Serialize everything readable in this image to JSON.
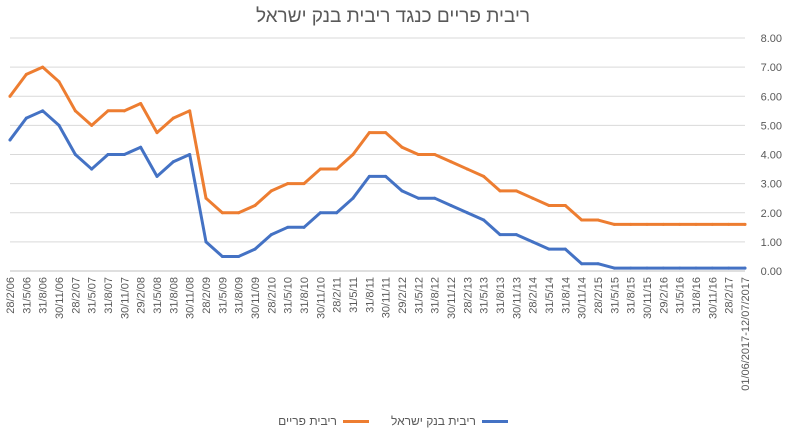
{
  "chart_data": {
    "type": "line",
    "title": "ריבית פריים כנגד ריבית בנק ישראל",
    "xlabel": "",
    "ylabel": "",
    "ylim": [
      0,
      8
    ],
    "yticks": [
      "0.00",
      "1.00",
      "2.00",
      "3.00",
      "4.00",
      "5.00",
      "6.00",
      "7.00",
      "8.00"
    ],
    "y_axis_side": "right",
    "grid": true,
    "legend_position": "bottom",
    "x_labels": [
      "28/2/06",
      "31/5/06",
      "31/8/06",
      "30/11/06",
      "28/2/07",
      "31/5/07",
      "31/8/07",
      "30/11/07",
      "29/2/08",
      "31/5/08",
      "31/8/08",
      "30/11/08",
      "28/2/09",
      "31/5/09",
      "31/8/09",
      "30/11/09",
      "28/2/10",
      "31/5/10",
      "31/8/10",
      "30/11/10",
      "28/2/11",
      "31/5/11",
      "31/8/11",
      "30/11/11",
      "29/2/12",
      "31/5/12",
      "31/8/12",
      "30/11/12",
      "28/2/13",
      "31/5/13",
      "31/8/13",
      "30/11/13",
      "28/2/14",
      "31/5/14",
      "31/8/14",
      "30/11/14",
      "28/2/15",
      "31/5/15",
      "31/8/15",
      "30/11/15",
      "29/2/16",
      "31/5/16",
      "31/8/16",
      "30/11/16",
      "28/2/17",
      "01/06/2017-12/07/2017"
    ],
    "series": [
      {
        "name": "ריבית בנק ישראל",
        "color": "#4472C4",
        "values": [
          4.5,
          5.25,
          5.5,
          5.0,
          4.0,
          3.5,
          4.0,
          4.0,
          4.25,
          3.25,
          3.75,
          4.0,
          1.0,
          0.5,
          0.5,
          0.75,
          1.25,
          1.5,
          1.5,
          2.0,
          2.0,
          2.5,
          3.25,
          3.25,
          2.75,
          2.5,
          2.5,
          2.25,
          2.0,
          1.75,
          1.25,
          1.25,
          1.0,
          0.75,
          0.75,
          0.25,
          0.25,
          0.1,
          0.1,
          0.1,
          0.1,
          0.1,
          0.1,
          0.1,
          0.1,
          0.1
        ]
      },
      {
        "name": "ריבית פריים",
        "color": "#ED7D31",
        "values": [
          6.0,
          6.75,
          7.0,
          6.5,
          5.5,
          5.0,
          5.5,
          5.5,
          5.75,
          4.75,
          5.25,
          5.5,
          2.5,
          2.0,
          2.0,
          2.25,
          2.75,
          3.0,
          3.0,
          3.5,
          3.5,
          4.0,
          4.75,
          4.75,
          4.25,
          4.0,
          4.0,
          3.75,
          3.5,
          3.25,
          2.75,
          2.75,
          2.5,
          2.25,
          2.25,
          1.75,
          1.75,
          1.6,
          1.6,
          1.6,
          1.6,
          1.6,
          1.6,
          1.6,
          1.6,
          1.6
        ]
      }
    ]
  }
}
